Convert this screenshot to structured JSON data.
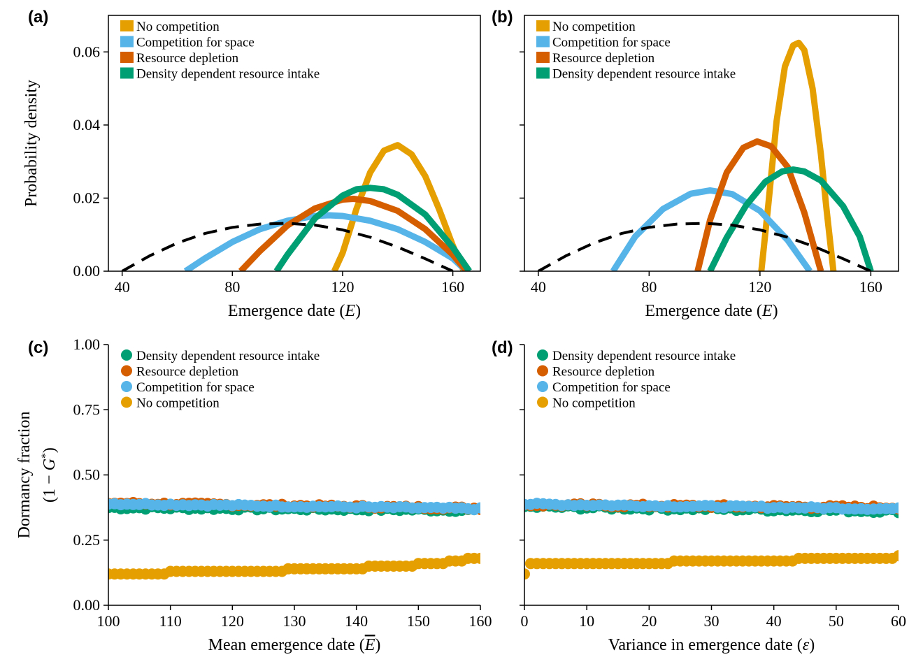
{
  "colors": {
    "no_competition": "#E69F00",
    "competition_space": "#56B4E9",
    "resource_depletion": "#D55E00",
    "density_dependent": "#009E73",
    "baseline": "#000000"
  },
  "chart_data": [
    {
      "panel": "(a)",
      "type": "line",
      "xlabel_main": "Emergence date (",
      "xlabel_italic": "E",
      "xlabel_tail": ")",
      "ylabel": "Probability density",
      "xlim": [
        35,
        170
      ],
      "ylim": [
        0,
        0.07
      ],
      "xticks": [
        "40",
        "80",
        "120",
        "160"
      ],
      "xtick_values": [
        40,
        80,
        120,
        160
      ],
      "yticks": [
        "0.00",
        "0.02",
        "0.04",
        "0.06"
      ],
      "ytick_values": [
        0,
        0.02,
        0.04,
        0.06
      ],
      "legend": [
        "No competition",
        "Competition for space",
        "Resource depletion",
        "Density dependent resource intake"
      ],
      "series": [
        {
          "name": "No competition",
          "color_key": "no_competition",
          "x": [
            117,
            120,
            125,
            130,
            135,
            140,
            145,
            150,
            155,
            160,
            164
          ],
          "y": [
            0.0,
            0.005,
            0.017,
            0.027,
            0.033,
            0.0345,
            0.032,
            0.026,
            0.017,
            0.007,
            0.0
          ]
        },
        {
          "name": "Competition for space",
          "color_key": "competition_space",
          "x": [
            63,
            70,
            80,
            90,
            100,
            110,
            115,
            120,
            130,
            140,
            150,
            160,
            165
          ],
          "y": [
            0.0,
            0.0035,
            0.008,
            0.0115,
            0.0138,
            0.0151,
            0.0153,
            0.0151,
            0.0138,
            0.0115,
            0.008,
            0.0035,
            0.0
          ]
        },
        {
          "name": "Resource depletion",
          "color_key": "resource_depletion",
          "x": [
            83,
            90,
            100,
            110,
            120,
            124,
            130,
            140,
            150,
            160,
            165
          ],
          "y": [
            0.0,
            0.0055,
            0.0125,
            0.0172,
            0.0196,
            0.0198,
            0.0192,
            0.0165,
            0.0115,
            0.0045,
            0.0
          ]
        },
        {
          "name": "Density dependent resource intake",
          "color_key": "density_dependent",
          "x": [
            96,
            100,
            110,
            120,
            125,
            130,
            135,
            140,
            150,
            160,
            166
          ],
          "y": [
            0.0,
            0.0045,
            0.0145,
            0.0207,
            0.0224,
            0.0228,
            0.0224,
            0.0209,
            0.0155,
            0.0065,
            0.0
          ]
        },
        {
          "name": "",
          "color_key": "baseline",
          "dashed": true,
          "x": [
            40,
            50,
            60,
            70,
            80,
            90,
            100,
            110,
            120,
            130,
            140,
            150,
            160
          ],
          "y": [
            0.0,
            0.0042,
            0.0077,
            0.0103,
            0.012,
            0.0129,
            0.0131,
            0.0126,
            0.0113,
            0.0093,
            0.0066,
            0.0034,
            0.0
          ]
        }
      ]
    },
    {
      "panel": "(b)",
      "type": "line",
      "xlabel_main": "Emergence date (",
      "xlabel_italic": "E",
      "xlabel_tail": ")",
      "ylabel": "",
      "xlim": [
        35,
        170
      ],
      "ylim": [
        0,
        0.07
      ],
      "xticks": [
        "40",
        "80",
        "120",
        "160"
      ],
      "xtick_values": [
        40,
        80,
        120,
        160
      ],
      "yticks": [
        "",
        "",
        "",
        ""
      ],
      "ytick_values": [
        0,
        0.02,
        0.04,
        0.06
      ],
      "legend": [
        "No competition",
        "Competition for space",
        "Resource depletion",
        "Density dependent resource intake"
      ],
      "series": [
        {
          "name": "No competition",
          "color_key": "no_competition",
          "x": [
            120.5,
            123,
            126,
            129,
            132,
            134,
            136,
            139,
            142,
            144,
            146.5
          ],
          "y": [
            0.0,
            0.018,
            0.041,
            0.056,
            0.0618,
            0.0625,
            0.0605,
            0.05,
            0.032,
            0.017,
            0.0
          ]
        },
        {
          "name": "Competition for space",
          "color_key": "competition_space",
          "x": [
            67,
            75,
            85,
            95,
            102,
            110,
            120,
            130,
            138
          ],
          "y": [
            0.0,
            0.0095,
            0.017,
            0.0212,
            0.0221,
            0.0211,
            0.0165,
            0.0085,
            0.0
          ]
        },
        {
          "name": "Resource depletion",
          "color_key": "resource_depletion",
          "x": [
            97.5,
            102,
            108,
            114,
            119,
            124,
            130,
            136,
            142
          ],
          "y": [
            0.0,
            0.014,
            0.027,
            0.0338,
            0.0355,
            0.0342,
            0.0285,
            0.016,
            0.0
          ]
        },
        {
          "name": "Density dependent resource intake",
          "color_key": "density_dependent",
          "x": [
            102,
            108,
            115,
            122,
            128,
            132,
            136,
            142,
            150,
            156,
            160
          ],
          "y": [
            0.0,
            0.0092,
            0.018,
            0.0245,
            0.0273,
            0.0278,
            0.0273,
            0.0248,
            0.0178,
            0.0095,
            0.0
          ]
        },
        {
          "name": "",
          "color_key": "baseline",
          "dashed": true,
          "x": [
            40,
            50,
            60,
            70,
            80,
            90,
            100,
            110,
            120,
            130,
            140,
            150,
            160
          ],
          "y": [
            0.0,
            0.0042,
            0.0077,
            0.0103,
            0.012,
            0.0129,
            0.0131,
            0.0126,
            0.0113,
            0.0093,
            0.0066,
            0.0034,
            0.0
          ]
        }
      ]
    },
    {
      "panel": "(c)",
      "type": "scatter",
      "xlabel_main": "Mean emergence date (",
      "xlabel_italic": "E",
      "xlabel_tail": ")",
      "xlabel_overline": true,
      "ylabel": "Dormancy fraction",
      "ylabel2_main": "(1 − ",
      "ylabel2_italic": "G",
      "ylabel2_sup": "*",
      "ylabel2_tail": ")",
      "xlim": [
        100,
        160
      ],
      "ylim": [
        0,
        1
      ],
      "xticks": [
        "100",
        "110",
        "120",
        "130",
        "140",
        "150",
        "160"
      ],
      "xtick_values": [
        100,
        110,
        120,
        130,
        140,
        150,
        160
      ],
      "yticks": [
        "0.00",
        "0.25",
        "0.50",
        "0.75",
        "1.00"
      ],
      "ytick_values": [
        0,
        0.25,
        0.5,
        0.75,
        1.0
      ],
      "legend": [
        "Density dependent resource intake",
        "Resource depletion",
        "Competition for space",
        "No competition"
      ],
      "scatter_series": [
        {
          "name": "Density dependent resource intake",
          "color_key": "density_dependent",
          "x_start": 100,
          "x_end": 160,
          "step": 1,
          "y_start": 0.375,
          "y_end": 0.365,
          "jitter": 0.006
        },
        {
          "name": "Resource depletion",
          "color_key": "resource_depletion",
          "x_start": 100,
          "x_end": 160,
          "step": 1,
          "y_start": 0.392,
          "y_end": 0.372,
          "jitter": 0.005
        },
        {
          "name": "Competition for space",
          "color_key": "competition_space",
          "x_start": 100,
          "x_end": 160,
          "step": 1,
          "y_start": 0.39,
          "y_end": 0.37,
          "jitter": 0.004
        },
        {
          "name": "No competition",
          "color_key": "no_competition",
          "steps": [
            [
              100,
              0.12
            ],
            [
              110,
              0.13
            ],
            [
              129,
              0.14
            ],
            [
              142,
              0.15
            ],
            [
              150,
              0.16
            ],
            [
              155,
              0.17
            ],
            [
              158,
              0.18
            ]
          ],
          "x_start": 100,
          "x_end": 160,
          "step": 1
        }
      ]
    },
    {
      "panel": "(d)",
      "type": "scatter",
      "xlabel_main": "Variance in emergence date (",
      "xlabel_italic": "ε",
      "xlabel_tail": ")",
      "ylabel": "",
      "xlim": [
        0,
        60
      ],
      "ylim": [
        0,
        1
      ],
      "xticks": [
        "0",
        "10",
        "20",
        "30",
        "40",
        "50",
        "60"
      ],
      "xtick_values": [
        0,
        10,
        20,
        30,
        40,
        50,
        60
      ],
      "yticks": [
        "",
        "",
        "",
        "",
        ""
      ],
      "ytick_values": [
        0,
        0.25,
        0.5,
        0.75,
        1.0
      ],
      "legend": [
        "Density dependent resource intake",
        "Resource depletion",
        "Competition for space",
        "No competition"
      ],
      "scatter_series": [
        {
          "name": "Density dependent resource intake",
          "color_key": "density_dependent",
          "x_start": 0,
          "x_end": 60,
          "step": 1,
          "y_start": 0.378,
          "y_end": 0.362,
          "jitter": 0.007
        },
        {
          "name": "Resource depletion",
          "color_key": "resource_depletion",
          "x_start": 0,
          "x_end": 60,
          "step": 1,
          "y_start": 0.385,
          "y_end": 0.375,
          "jitter": 0.006
        },
        {
          "name": "Competition for space",
          "color_key": "competition_space",
          "x_start": 0,
          "x_end": 60,
          "step": 1,
          "y_start": 0.388,
          "y_end": 0.37,
          "jitter": 0.004
        },
        {
          "name": "No competition",
          "color_key": "no_competition",
          "steps": [
            [
              0,
              0.12
            ],
            [
              1,
              0.16
            ],
            [
              24,
              0.17
            ],
            [
              44,
              0.18
            ],
            [
              60,
              0.19
            ]
          ],
          "x_start": 0,
          "x_end": 60,
          "step": 1
        }
      ]
    }
  ]
}
